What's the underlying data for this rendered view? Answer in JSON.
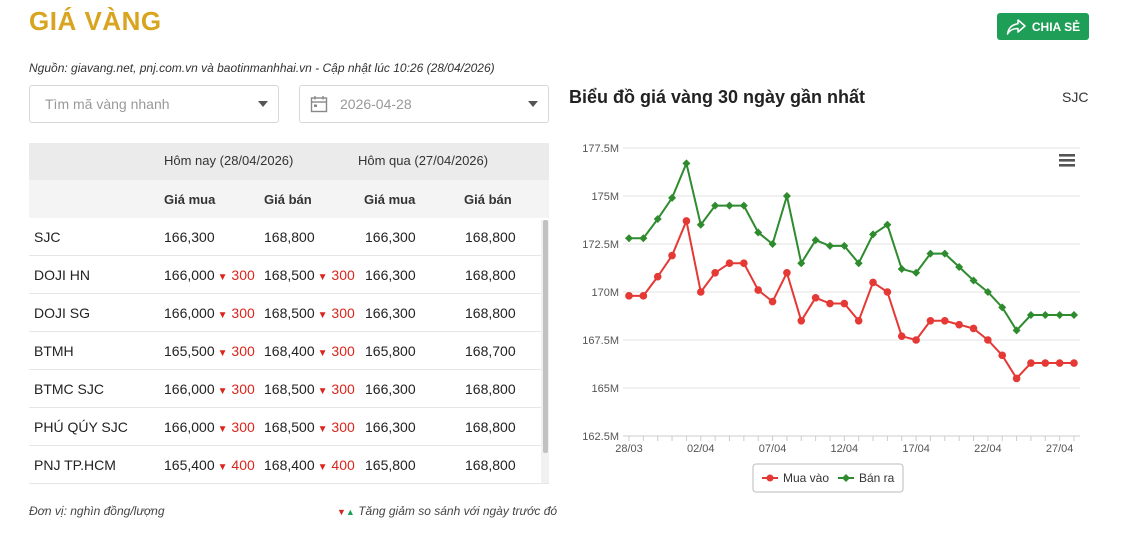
{
  "page": {
    "title": "GIÁ VÀNG",
    "share_label": "CHIA SẺ",
    "source_line": "Nguồn: giavang.net, pnj.com.vn và baotinmanhhai.vn - Cập nhật lúc 10:26 (28/04/2026)"
  },
  "filters": {
    "search_placeholder": "Tìm mã vàng nhanh",
    "date_value": "2026-04-28"
  },
  "table": {
    "group_today": "Hôm nay (28/04/2026)",
    "group_yesterday": "Hôm qua (27/04/2026)",
    "col_buy": "Giá mua",
    "col_sell": "Giá bán",
    "rows": [
      {
        "name": "SJC",
        "buy": "166,300",
        "buy_change": "",
        "sell": "168,800",
        "sell_change": "",
        "y_buy": "166,300",
        "y_sell": "168,800"
      },
      {
        "name": "DOJI HN",
        "buy": "166,000",
        "buy_change": "300",
        "sell": "168,500",
        "sell_change": "300",
        "y_buy": "166,300",
        "y_sell": "168,800"
      },
      {
        "name": "DOJI SG",
        "buy": "166,000",
        "buy_change": "300",
        "sell": "168,500",
        "sell_change": "300",
        "y_buy": "166,300",
        "y_sell": "168,800"
      },
      {
        "name": "BTMH",
        "buy": "165,500",
        "buy_change": "300",
        "sell": "168,400",
        "sell_change": "300",
        "y_buy": "165,800",
        "y_sell": "168,700"
      },
      {
        "name": "BTMC SJC",
        "buy": "166,000",
        "buy_change": "300",
        "sell": "168,500",
        "sell_change": "300",
        "y_buy": "166,300",
        "y_sell": "168,800"
      },
      {
        "name": "PHÚ QÚY SJC",
        "buy": "166,000",
        "buy_change": "300",
        "sell": "168,500",
        "sell_change": "300",
        "y_buy": "166,300",
        "y_sell": "168,800"
      },
      {
        "name": "PNJ TP.HCM",
        "buy": "165,400",
        "buy_change": "400",
        "sell": "168,400",
        "sell_change": "400",
        "y_buy": "165,800",
        "y_sell": "168,800"
      }
    ]
  },
  "footer": {
    "unit_note": "Đơn vị: nghìn đồng/lượng",
    "trend_note": "Tăng giảm so sánh với ngày trước đó"
  },
  "chart_header": {
    "title": "Biểu đồ giá vàng 30 ngày gần nhất",
    "product": "SJC"
  },
  "chart_data": {
    "type": "line",
    "x": [
      "28/03",
      "29/03",
      "30/03",
      "31/03",
      "01/04",
      "02/04",
      "03/04",
      "04/04",
      "05/04",
      "06/04",
      "07/04",
      "08/04",
      "09/04",
      "10/04",
      "11/04",
      "12/04",
      "13/04",
      "14/04",
      "15/04",
      "16/04",
      "17/04",
      "18/04",
      "19/04",
      "20/04",
      "21/04",
      "22/04",
      "23/04",
      "24/04",
      "25/04",
      "26/04",
      "27/04",
      "28/04"
    ],
    "x_tick_labels": [
      "28/03",
      "02/04",
      "07/04",
      "12/04",
      "17/04",
      "22/04",
      "27/04"
    ],
    "y_tick_labels": [
      "162.5M",
      "165M",
      "167.5M",
      "170M",
      "172.5M",
      "175M",
      "177.5M"
    ],
    "ylim": [
      162.5,
      177.5
    ],
    "y_unit": "M",
    "series": [
      {
        "name": "Mua vào",
        "color": "#e53935",
        "values": [
          169.8,
          169.8,
          170.8,
          171.9,
          173.7,
          170.0,
          171.0,
          171.5,
          171.5,
          170.1,
          169.5,
          171.0,
          168.5,
          169.7,
          169.4,
          169.4,
          168.5,
          170.5,
          170.0,
          167.7,
          167.5,
          168.5,
          168.5,
          168.3,
          168.1,
          167.5,
          166.7,
          165.5,
          166.3,
          166.3,
          166.3,
          166.3
        ]
      },
      {
        "name": "Bán ra",
        "color": "#2e8b2e",
        "values": [
          172.8,
          172.8,
          173.8,
          174.9,
          176.7,
          173.5,
          174.5,
          174.5,
          174.5,
          173.1,
          172.5,
          175.0,
          171.5,
          172.7,
          172.4,
          172.4,
          171.5,
          173.0,
          173.5,
          171.2,
          171.0,
          172.0,
          172.0,
          171.3,
          170.6,
          170.0,
          169.2,
          168.0,
          168.8,
          168.8,
          168.8,
          168.8
        ]
      }
    ],
    "legend_position": "bottom-center",
    "grid": true
  },
  "colors": {
    "title_gold": "#d9a520",
    "share_green": "#1f9e57",
    "down_red": "#d9251c"
  }
}
